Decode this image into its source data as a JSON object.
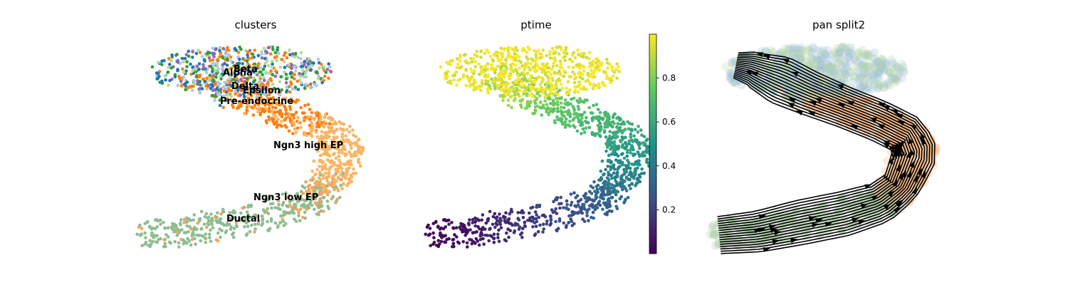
{
  "chart_data": [
    {
      "type": "scatter",
      "title": "clusters",
      "xlabel": "",
      "ylabel": "",
      "grid": false,
      "colors": {
        "Ductal": "#8fbc8f",
        "Ngn3 low EP": "#f4a460",
        "Ngn3 high EP": "#fdb462",
        "Pre-endocrine": "#ff7f0e",
        "Beta": "#1f77b4",
        "Alpha": "#aec7e8",
        "Delta": "#2ca02c",
        "Epsilon": "#9467bd",
        "Other": "#b5d89a"
      },
      "labels": [
        {
          "text": "Beta"
        },
        {
          "text": "Alpha"
        },
        {
          "text": "Delta"
        },
        {
          "text": "Epsilon"
        },
        {
          "text": "Pre-endocrine"
        },
        {
          "text": "Ngn3 high EP"
        },
        {
          "text": "Ngn3 low EP"
        },
        {
          "text": "Ductal"
        }
      ]
    },
    {
      "type": "scatter",
      "title": "ptime",
      "xlabel": "",
      "ylabel": "",
      "grid": false,
      "colormap": "viridis",
      "colorbar": {
        "range": [
          0,
          1
        ],
        "ticks": [
          "0.2",
          "0.4",
          "0.6",
          "0.8"
        ],
        "tick_values": [
          0.2,
          0.4,
          0.6,
          0.8
        ]
      }
    },
    {
      "type": "scatter",
      "title": "pan split2",
      "xlabel": "",
      "ylabel": "",
      "grid": false,
      "overlay": "streamlines",
      "stream_color": "#000000"
    }
  ]
}
